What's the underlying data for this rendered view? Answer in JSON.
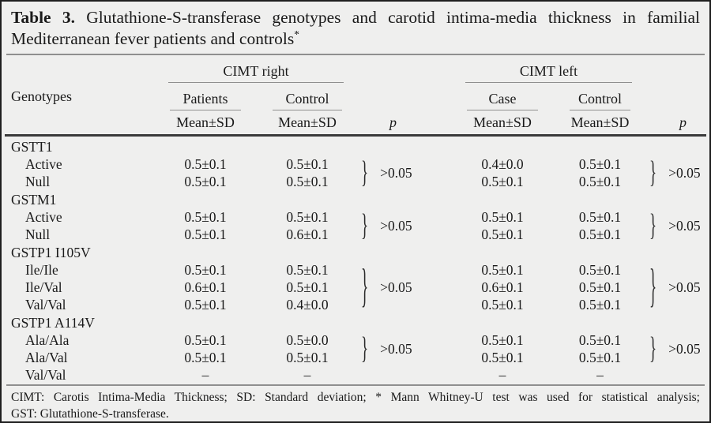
{
  "title": {
    "label": "Table 3.",
    "line1": "Glutathione-S-transferase genotypes and carotid intima-media thickness in familial",
    "line2": "Mediterranean fever patients and controls",
    "marker": "*"
  },
  "header": {
    "genotypes": "Genotypes",
    "cimt_right": "CIMT right",
    "cimt_left": "CIMT left",
    "patients": "Patients",
    "control": "Control",
    "case": "Case",
    "mean_sd": "Mean±SD",
    "p": "p"
  },
  "brace": "}",
  "groups": [
    {
      "name": "GSTT1",
      "p_right": ">0.05",
      "p_left": ">0.05",
      "rows": [
        {
          "label": "Active",
          "right_patients": "0.5±0.1",
          "right_control": "0.5±0.1",
          "left_case": "0.4±0.0",
          "left_control": "0.5±0.1"
        },
        {
          "label": "Null",
          "right_patients": "0.5±0.1",
          "right_control": "0.5±0.1",
          "left_case": "0.5±0.1",
          "left_control": "0.5±0.1"
        }
      ]
    },
    {
      "name": "GSTM1",
      "p_right": ">0.05",
      "p_left": ">0.05",
      "rows": [
        {
          "label": "Active",
          "right_patients": "0.5±0.1",
          "right_control": "0.5±0.1",
          "left_case": "0.5±0.1",
          "left_control": "0.5±0.1"
        },
        {
          "label": "Null",
          "right_patients": "0.5±0.1",
          "right_control": "0.6±0.1",
          "left_case": "0.5±0.1",
          "left_control": "0.5±0.1"
        }
      ]
    },
    {
      "name": "GSTP1 I105V",
      "p_right": ">0.05",
      "p_left": ">0.05",
      "rows": [
        {
          "label": "Ile/Ile",
          "right_patients": "0.5±0.1",
          "right_control": "0.5±0.1",
          "left_case": "0.5±0.1",
          "left_control": "0.5±0.1"
        },
        {
          "label": "Ile/Val",
          "right_patients": "0.6±0.1",
          "right_control": "0.5±0.1",
          "left_case": "0.6±0.1",
          "left_control": "0.5±0.1"
        },
        {
          "label": "Val/Val",
          "right_patients": "0.5±0.1",
          "right_control": "0.4±0.0",
          "left_case": "0.5±0.1",
          "left_control": "0.5±0.1"
        }
      ]
    },
    {
      "name": "GSTP1 A114V",
      "p_right": ">0.05",
      "p_left": ">0.05",
      "rows": [
        {
          "label": "Ala/Ala",
          "right_patients": "0.5±0.1",
          "right_control": "0.5±0.0",
          "left_case": "0.5±0.1",
          "left_control": "0.5±0.1"
        },
        {
          "label": "Ala/Val",
          "right_patients": "0.5±0.1",
          "right_control": "0.5±0.1",
          "left_case": "0.5±0.1",
          "left_control": "0.5±0.1"
        },
        {
          "label": "Val/Val",
          "right_patients": "–",
          "right_control": "–",
          "left_case": "–",
          "left_control": "–"
        }
      ]
    }
  ],
  "footnote": {
    "line1": "CIMT: Carotis Intima-Media Thickness; SD: Standard deviation; * Mann Whitney-U test was used for statistical analysis;",
    "line2": "GST: Glutathione-S-transferase."
  },
  "colors": {
    "background": "#efefee",
    "border": "#1f1f1f",
    "rule_gray": "#8f8f8f",
    "rule_dark": "#3a3a3a",
    "text": "#1a1a1a"
  }
}
